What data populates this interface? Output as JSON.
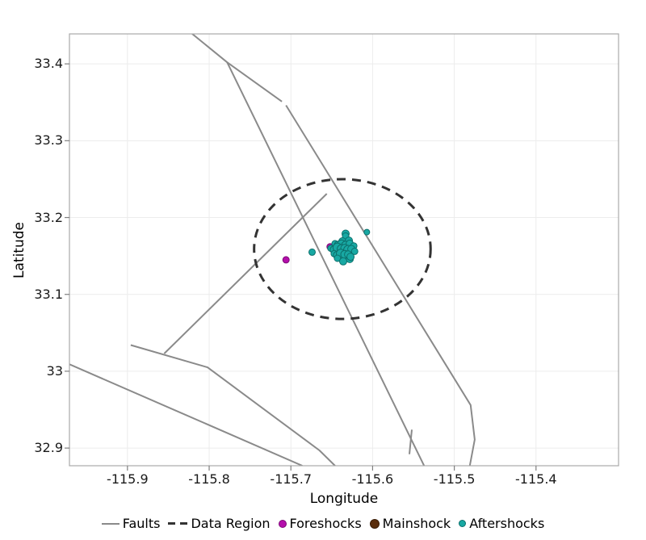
{
  "figure": {
    "background": "#ffffff"
  },
  "chart_data": {
    "type": "scatter",
    "title": "",
    "xlabel": "Longitude",
    "ylabel": "Latitude",
    "xlim": [
      -115.971,
      -115.299
    ],
    "ylim": [
      32.877,
      33.439
    ],
    "grid": true,
    "legend_position": "bottom",
    "x_ticks": {
      "values": [
        -115.9,
        -115.8,
        -115.7,
        -115.6,
        -115.5,
        -115.4
      ],
      "labels": [
        "-115.9",
        "-115.8",
        "-115.7",
        "-115.6",
        "-115.5",
        "-115.4"
      ]
    },
    "y_ticks": {
      "values": [
        33.4,
        33.3,
        33.2,
        33.1,
        33.0,
        32.9
      ],
      "labels": [
        "33.4",
        "33.3",
        "33.2",
        "33.1",
        "33",
        "32.9"
      ]
    },
    "style": {
      "grid_color": "#ececec",
      "border_color": "#a9a9a9",
      "tick_color": "#7f7f7f",
      "fault_color": "#8a8a8a",
      "region_color": "#333333"
    },
    "series": [
      {
        "name": "Faults",
        "type": "line",
        "color": "#8a8a8a",
        "width": 2,
        "polylines": [
          [
            [
              -115.823,
              33.441
            ],
            [
              -115.778,
              33.402
            ],
            [
              -115.711,
              33.351
            ]
          ],
          [
            [
              -115.778,
              33.402
            ],
            [
              -115.537,
              32.877
            ]
          ],
          [
            [
              -115.706,
              33.346
            ],
            [
              -115.48,
              32.956
            ],
            [
              -115.475,
              32.911
            ],
            [
              -115.481,
              32.877
            ]
          ],
          [
            [
              -115.656,
              33.231
            ],
            [
              -115.855,
              33.023
            ]
          ],
          [
            [
              -115.896,
              33.034
            ],
            [
              -115.802,
              33.005
            ],
            [
              -115.665,
              32.897
            ],
            [
              -115.646,
              32.877
            ]
          ],
          [
            [
              -115.971,
              33.009
            ],
            [
              -115.686,
              32.877
            ]
          ],
          [
            [
              -115.552,
              32.924
            ],
            [
              -115.555,
              32.892
            ]
          ]
        ]
      },
      {
        "name": "Data Region",
        "type": "ellipse",
        "color": "#333333",
        "dash": [
          11,
          8
        ],
        "width": 3,
        "center": [
          -115.637,
          33.159
        ],
        "rx": 0.108,
        "ry": 0.091
      },
      {
        "name": "Foreshocks",
        "type": "scatter",
        "fill": "#b40fab",
        "stroke": "#7d0a77",
        "points": [
          {
            "lon": -115.706,
            "lat": 33.145,
            "r": 4
          },
          {
            "lon": -115.652,
            "lat": 33.162,
            "r": 4
          }
        ]
      },
      {
        "name": "Mainshock",
        "type": "scatter",
        "fill": "#5a2d0c",
        "stroke": "#3a1d07",
        "points": [
          {
            "lon": -115.636,
            "lat": 33.158,
            "r": 5.5
          }
        ]
      },
      {
        "name": "Aftershocks",
        "type": "scatter",
        "fill": "#18a8a3",
        "stroke": "#0c6f6b",
        "points": [
          {
            "lon": -115.674,
            "lat": 33.155,
            "r": 4
          },
          {
            "lon": -115.633,
            "lat": 33.179,
            "r": 4.5
          },
          {
            "lon": -115.607,
            "lat": 33.181,
            "r": 3.5
          },
          {
            "lon": -115.628,
            "lat": 33.146,
            "r": 4.5
          },
          {
            "lon": -115.633,
            "lat": 33.176,
            "r": 4
          },
          {
            "lon": -115.637,
            "lat": 33.169,
            "r": 4.5
          },
          {
            "lon": -115.629,
            "lat": 33.17,
            "r": 4.5
          },
          {
            "lon": -115.646,
            "lat": 33.166,
            "r": 4
          },
          {
            "lon": -115.642,
            "lat": 33.164,
            "r": 5
          },
          {
            "lon": -115.638,
            "lat": 33.165,
            "r": 5.5
          },
          {
            "lon": -115.633,
            "lat": 33.164,
            "r": 5
          },
          {
            "lon": -115.628,
            "lat": 33.166,
            "r": 4.5
          },
          {
            "lon": -115.623,
            "lat": 33.163,
            "r": 4
          },
          {
            "lon": -115.651,
            "lat": 33.16,
            "r": 4
          },
          {
            "lon": -115.647,
            "lat": 33.158,
            "r": 5
          },
          {
            "lon": -115.643,
            "lat": 33.161,
            "r": 5.5
          },
          {
            "lon": -115.638,
            "lat": 33.159,
            "r": 5.5
          },
          {
            "lon": -115.634,
            "lat": 33.16,
            "r": 5
          },
          {
            "lon": -115.63,
            "lat": 33.158,
            "r": 5.5
          },
          {
            "lon": -115.626,
            "lat": 33.159,
            "r": 4.5
          },
          {
            "lon": -115.622,
            "lat": 33.156,
            "r": 4
          },
          {
            "lon": -115.647,
            "lat": 33.153,
            "r": 4
          },
          {
            "lon": -115.643,
            "lat": 33.151,
            "r": 5
          },
          {
            "lon": -115.639,
            "lat": 33.153,
            "r": 5.5
          },
          {
            "lon": -115.634,
            "lat": 33.152,
            "r": 5
          },
          {
            "lon": -115.63,
            "lat": 33.152,
            "r": 4.5
          },
          {
            "lon": -115.627,
            "lat": 33.149,
            "r": 4.5
          },
          {
            "lon": -115.643,
            "lat": 33.147,
            "r": 4
          },
          {
            "lon": -115.636,
            "lat": 33.143,
            "r": 4.5
          }
        ]
      }
    ]
  },
  "legend": {
    "items": [
      {
        "label": "Faults",
        "marker": "fault-line"
      },
      {
        "label": "Data Region",
        "marker": "dashed-line"
      },
      {
        "label": "Foreshocks",
        "marker": "magenta-dot"
      },
      {
        "label": "Mainshock",
        "marker": "brown-dot"
      },
      {
        "label": "Aftershocks",
        "marker": "teal-dot"
      }
    ]
  }
}
